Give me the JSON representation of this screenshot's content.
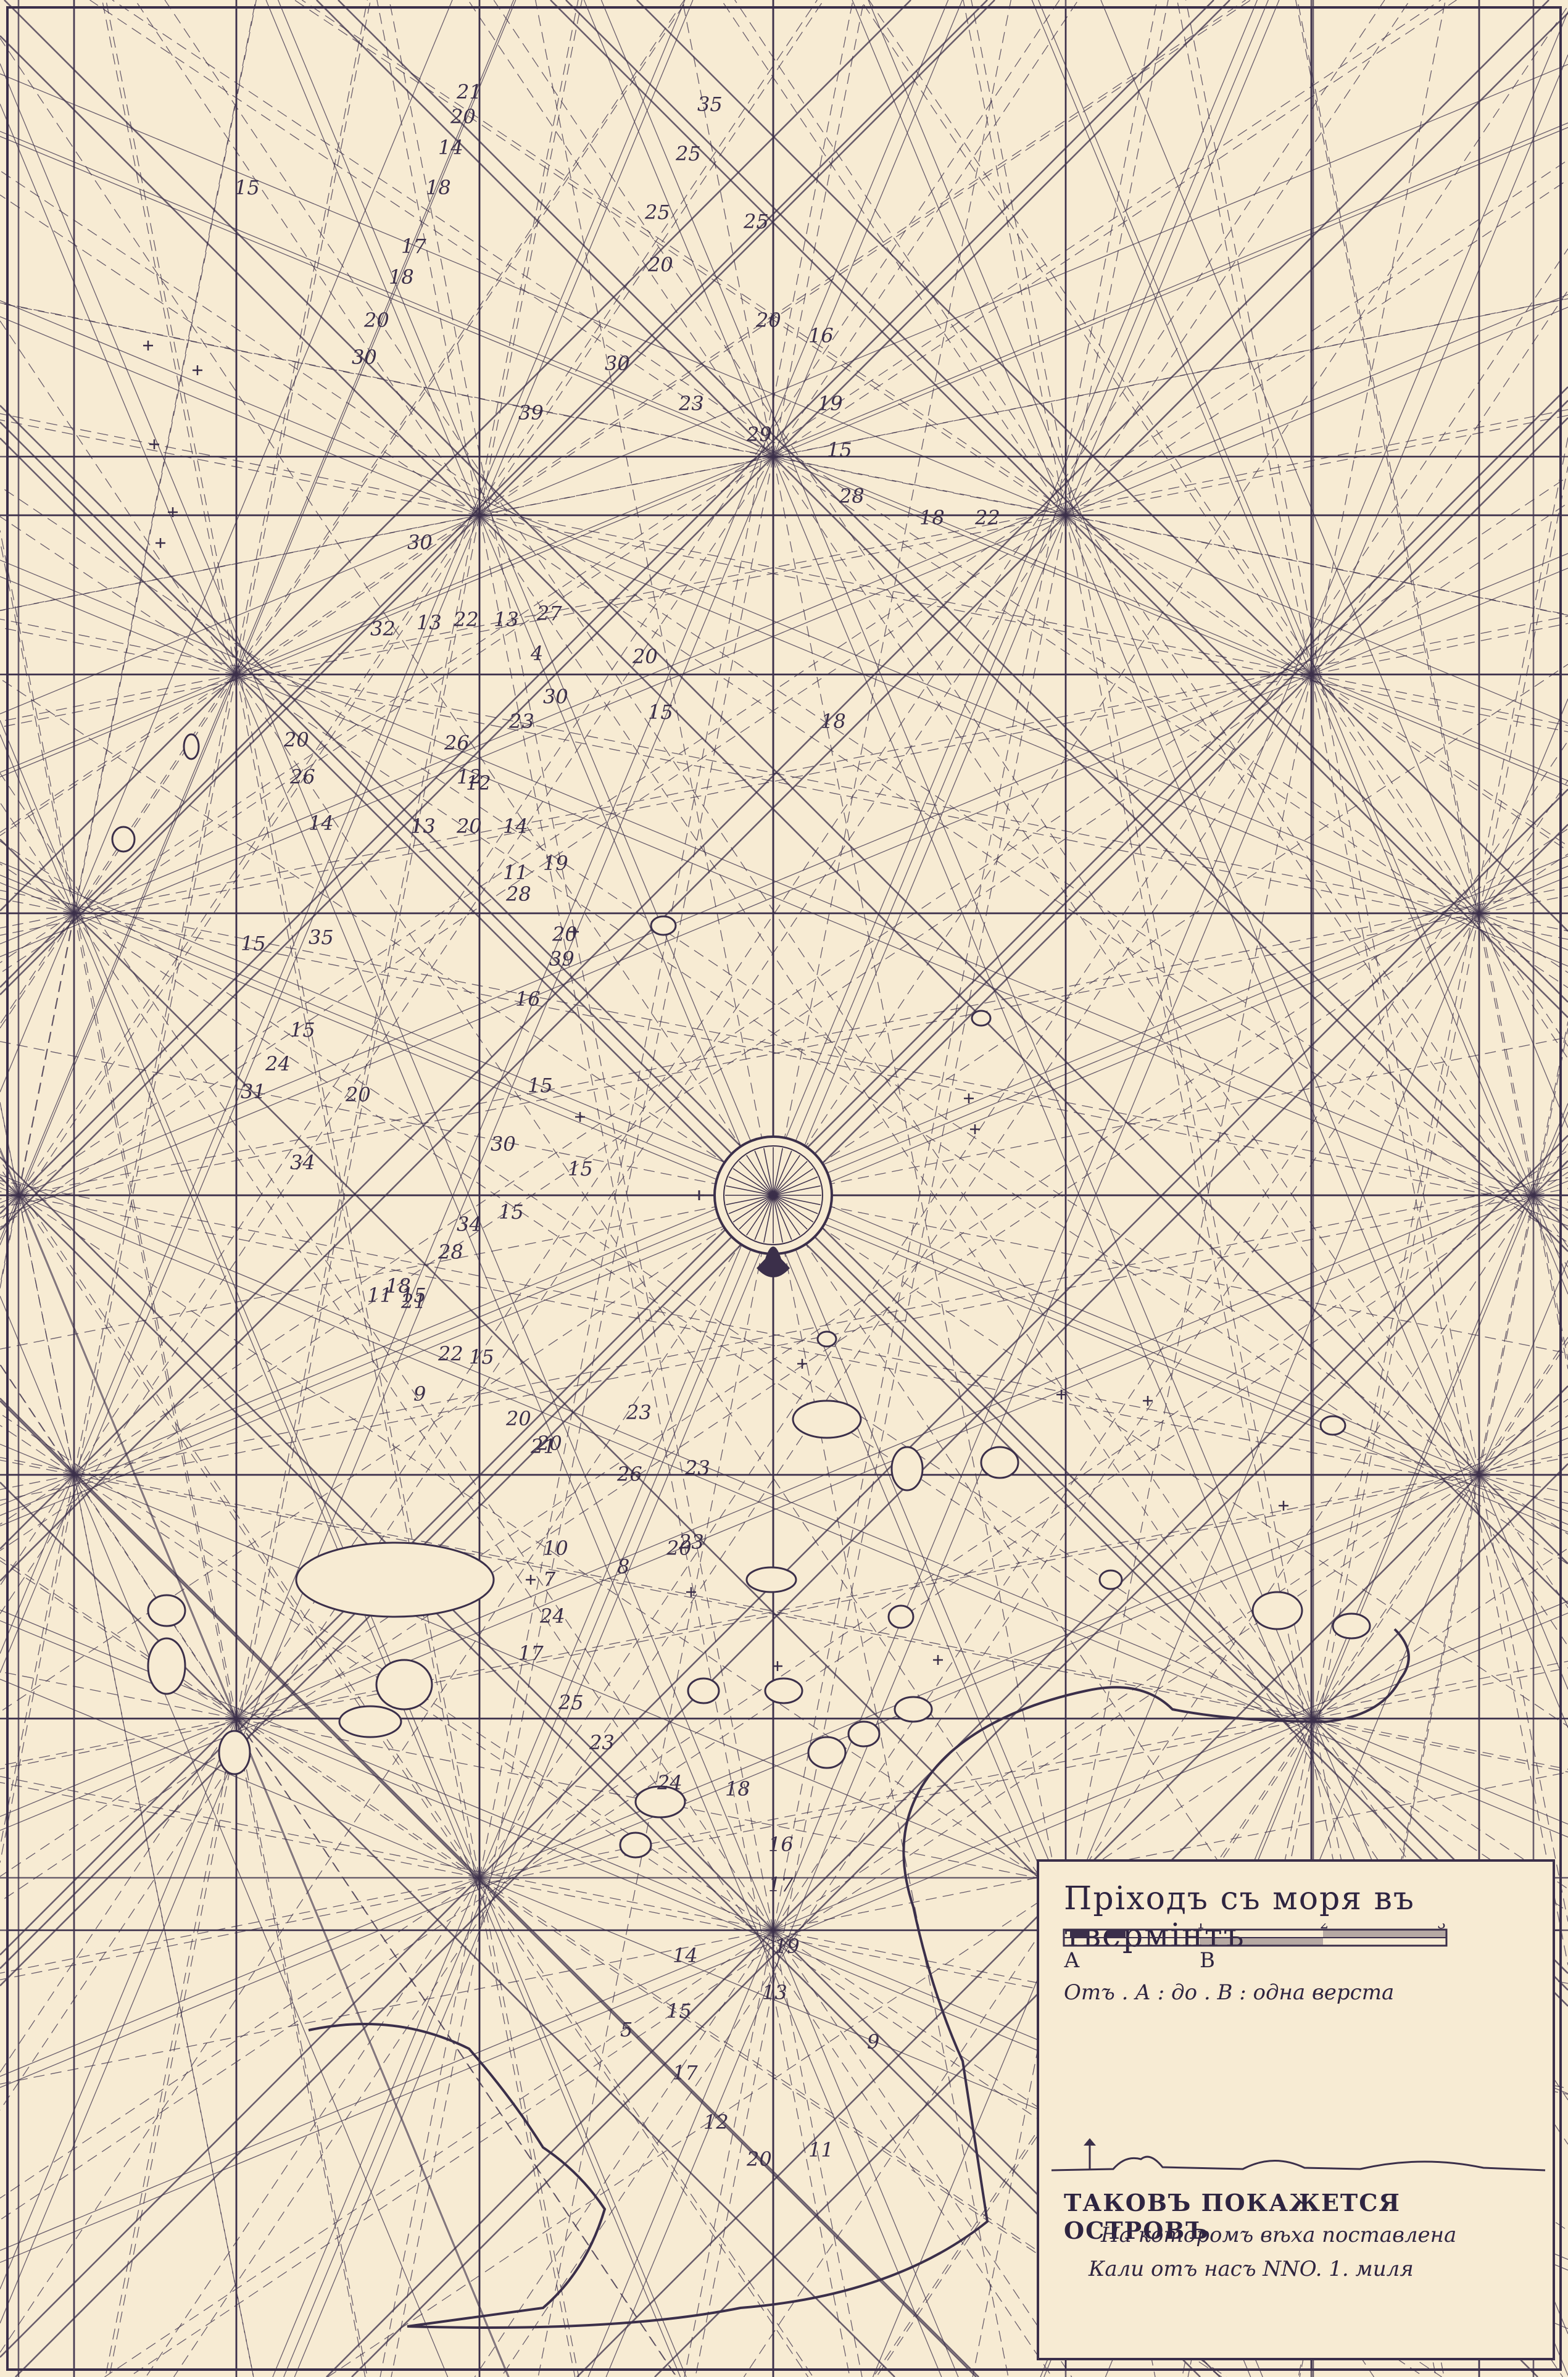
{
  "map": {
    "title": "Пріходъ съ моря въ твермінтъ",
    "scale": {
      "ticks": [
        "1",
        "2",
        "3"
      ],
      "label_a": "А",
      "label_b": "В",
      "text": "Отъ . А : до . В : одна верста"
    },
    "coastal_view": {
      "title": "ТАКОВЪ ПОКАЖЕТСЯ ОСТРОВЪ",
      "line1": "На которомъ вѣха поставлена",
      "line2": "Кали отъ насъ NNO. 1. миля"
    },
    "soundings": [
      "21",
      "20",
      "14",
      "18",
      "35",
      "25",
      "25",
      "25",
      "20",
      "30",
      "15",
      "17",
      "18",
      "20",
      "30",
      "20",
      "16",
      "19",
      "39",
      "23",
      "29",
      "15",
      "28",
      "18",
      "22",
      "12",
      "30",
      "32",
      "13",
      "22",
      "13",
      "27",
      "4",
      "20",
      "15",
      "18",
      "30",
      "23",
      "26",
      "20",
      "26",
      "12",
      "14",
      "13",
      "20",
      "14",
      "11",
      "19",
      "28",
      "15",
      "35",
      "20",
      "39",
      "15",
      "24",
      "16",
      "31",
      "20",
      "34",
      "15",
      "15",
      "30",
      "15",
      "34",
      "28",
      "21",
      "18",
      "15",
      "11",
      "22",
      "15",
      "9",
      "20",
      "21",
      "23",
      "20",
      "23",
      "26",
      "10",
      "23",
      "8",
      "7",
      "20",
      "24",
      "17",
      "25",
      "23",
      "24",
      "18",
      "16",
      "17",
      "19",
      "14",
      "13",
      "15",
      "17",
      "12",
      "20",
      "11",
      "9",
      "5"
    ]
  }
}
